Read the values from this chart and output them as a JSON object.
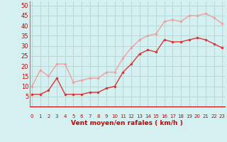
{
  "hours": [
    0,
    1,
    2,
    3,
    4,
    5,
    6,
    7,
    8,
    9,
    10,
    11,
    12,
    13,
    14,
    15,
    16,
    17,
    18,
    19,
    20,
    21,
    22,
    23
  ],
  "wind_avg": [
    6,
    6,
    8,
    14,
    6,
    6,
    6,
    7,
    7,
    9,
    10,
    17,
    21,
    26,
    28,
    27,
    33,
    32,
    32,
    33,
    34,
    33,
    31,
    29
  ],
  "wind_gust": [
    10,
    18,
    15,
    21,
    21,
    12,
    13,
    14,
    14,
    17,
    17,
    24,
    29,
    33,
    35,
    36,
    42,
    43,
    42,
    45,
    45,
    46,
    44,
    41
  ],
  "color_avg": "#dd3333",
  "color_gust": "#f0a0a0",
  "bg_color": "#d5f0f0",
  "grid_color": "#b8d8d8",
  "axis_color": "#cc0000",
  "tick_color": "#cc0000",
  "xlabel": "Vent moyen/en rafales ( km/h )",
  "ylim": [
    0,
    52
  ],
  "yticks": [
    5,
    10,
    15,
    20,
    25,
    30,
    35,
    40,
    45,
    50
  ],
  "marker_size": 2.5,
  "linewidth": 1.0
}
